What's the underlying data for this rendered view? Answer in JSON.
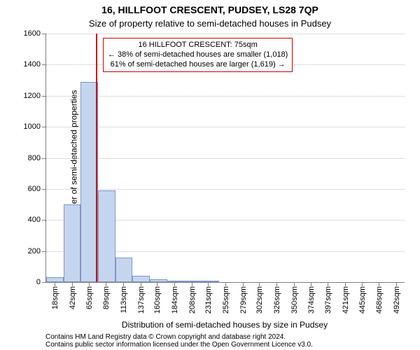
{
  "title": "16, HILLFOOT CRESCENT, PUDSEY, LS28 7QP",
  "subtitle": "Size of property relative to semi-detached houses in Pudsey",
  "yaxis_title": "Number of semi-detached properties",
  "xaxis_title": "Distribution of semi-detached houses by size in Pudsey",
  "footer_line1": "Contains HM Land Registry data © Crown copyright and database right 2024.",
  "footer_line2": "Contains public sector information licensed under the Open Government Licence v3.0.",
  "title_fontsize": 14,
  "subtitle_fontsize": 13,
  "chart": {
    "type": "histogram",
    "background_color": "#ffffff",
    "bar_fill": "#c6d5ee",
    "bar_stroke": "#7a97c9",
    "grid_color": "#bbbbbb",
    "axis_color": "#808080",
    "marker_line_color": "#cc0000",
    "callout_border": "#cc0000",
    "x_range": [
      6,
      504
    ],
    "bar_bin_width": 24,
    "bars": [
      {
        "x0": 6,
        "count": 30
      },
      {
        "x0": 30,
        "count": 500
      },
      {
        "x0": 54,
        "count": 1290
      },
      {
        "x0": 78,
        "count": 590
      },
      {
        "x0": 102,
        "count": 160
      },
      {
        "x0": 126,
        "count": 40
      },
      {
        "x0": 150,
        "count": 20
      },
      {
        "x0": 174,
        "count": 10
      },
      {
        "x0": 198,
        "count": 10
      },
      {
        "x0": 222,
        "count": 5
      },
      {
        "x0": 246,
        "count": 0
      },
      {
        "x0": 270,
        "count": 0
      },
      {
        "x0": 294,
        "count": 0
      },
      {
        "x0": 318,
        "count": 0
      },
      {
        "x0": 342,
        "count": 0
      },
      {
        "x0": 366,
        "count": 0
      },
      {
        "x0": 390,
        "count": 0
      },
      {
        "x0": 414,
        "count": 0
      },
      {
        "x0": 438,
        "count": 0
      },
      {
        "x0": 462,
        "count": 0
      },
      {
        "x0": 486,
        "count": 0
      }
    ],
    "y_ticks": [
      0,
      200,
      400,
      600,
      800,
      1000,
      1200,
      1400,
      1600
    ],
    "y_max": 1600,
    "x_ticks": [
      {
        "v": 18,
        "label": "18sqm"
      },
      {
        "v": 42,
        "label": "42sqm"
      },
      {
        "v": 65,
        "label": "65sqm"
      },
      {
        "v": 89,
        "label": "89sqm"
      },
      {
        "v": 113,
        "label": "113sqm"
      },
      {
        "v": 137,
        "label": "137sqm"
      },
      {
        "v": 160,
        "label": "160sqm"
      },
      {
        "v": 184,
        "label": "184sqm"
      },
      {
        "v": 208,
        "label": "208sqm"
      },
      {
        "v": 231,
        "label": "231sqm"
      },
      {
        "v": 255,
        "label": "255sqm"
      },
      {
        "v": 279,
        "label": "279sqm"
      },
      {
        "v": 302,
        "label": "302sqm"
      },
      {
        "v": 326,
        "label": "326sqm"
      },
      {
        "v": 350,
        "label": "350sqm"
      },
      {
        "v": 374,
        "label": "374sqm"
      },
      {
        "v": 397,
        "label": "397sqm"
      },
      {
        "v": 421,
        "label": "421sqm"
      },
      {
        "v": 445,
        "label": "445sqm"
      },
      {
        "v": 468,
        "label": "468sqm"
      },
      {
        "v": 492,
        "label": "492sqm"
      }
    ],
    "marker_x": 75
  },
  "callout": {
    "line1": "16 HILLFOOT CRESCENT: 75sqm",
    "line2": "← 38% of semi-detached houses are smaller (1,018)",
    "line3": "61% of semi-detached houses are larger (1,619) →"
  }
}
